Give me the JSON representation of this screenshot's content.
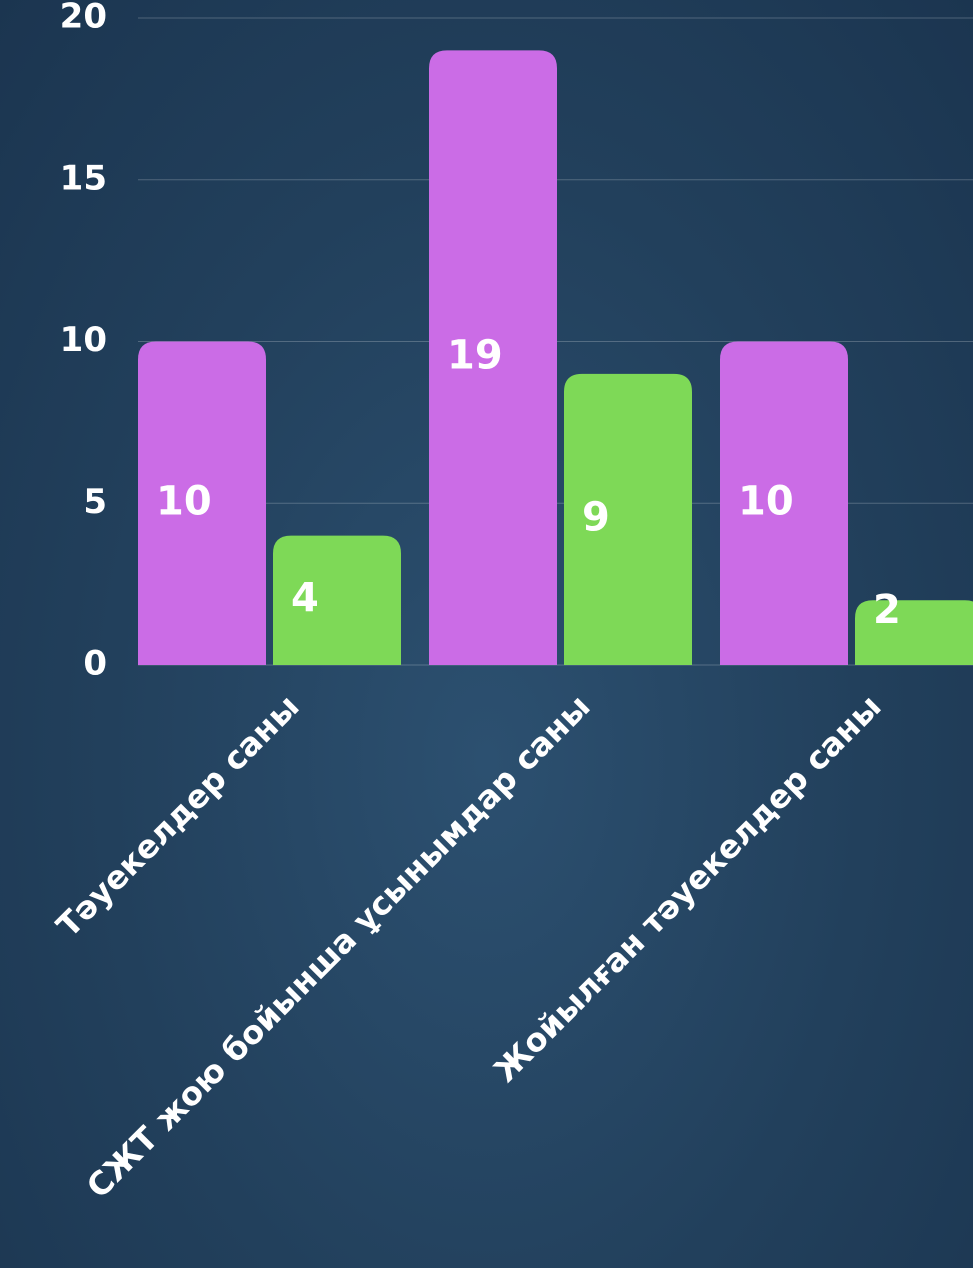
{
  "chart_data": {
    "type": "bar",
    "categories": [
      "Тәуекелдер саны",
      "СЖТ жою бойынша ұсынымдар саны",
      "Жойылған тәуекелдер саны"
    ],
    "series": [
      {
        "color": "#cb6ce6",
        "values": [
          10,
          19,
          10
        ]
      },
      {
        "color": "#7ed957",
        "values": [
          4,
          9,
          2
        ]
      }
    ],
    "ylim": [
      0,
      20
    ],
    "yticks": [
      0,
      5,
      10,
      15,
      20
    ],
    "grid": true
  }
}
